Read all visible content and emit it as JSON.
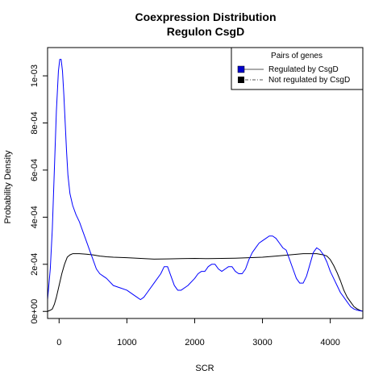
{
  "chart_data": {
    "type": "line",
    "title": "Coexpression Distribution",
    "subtitle": "Regulon CsgD",
    "xlabel": "SCR",
    "ylabel": "Probability Density",
    "xlim": [
      -170,
      4480
    ],
    "ylim": [
      -3e-05,
      0.00112
    ],
    "x_ticks": [
      0,
      1000,
      2000,
      3000,
      4000
    ],
    "x_tick_labels": [
      "0",
      "1000",
      "2000",
      "3000",
      "4000"
    ],
    "y_ticks": [
      0,
      0.0002,
      0.0004,
      0.0006,
      0.0008,
      0.001
    ],
    "y_tick_labels": [
      "0e+00",
      "2e-04",
      "4e-04",
      "6e-04",
      "8e-04",
      "1e-03"
    ],
    "grid": false,
    "legend": {
      "title": "Pairs of genes",
      "placement": "top-right",
      "entries": [
        "Regulated by  CsgD",
        "Not regulated by  CsgD"
      ]
    },
    "series": [
      {
        "name": "Regulated by  CsgD",
        "color": "#0000ff",
        "x": [
          -170,
          -130,
          -100,
          -70,
          -40,
          -10,
          10,
          30,
          50,
          70,
          90,
          110,
          130,
          160,
          200,
          250,
          300,
          350,
          400,
          450,
          500,
          550,
          600,
          650,
          700,
          800,
          900,
          1000,
          1100,
          1150,
          1200,
          1250,
          1300,
          1400,
          1500,
          1550,
          1600,
          1650,
          1700,
          1750,
          1800,
          1900,
          2000,
          2050,
          2100,
          2150,
          2200,
          2250,
          2300,
          2350,
          2400,
          2450,
          2500,
          2550,
          2600,
          2650,
          2700,
          2750,
          2800,
          2850,
          2900,
          2950,
          3000,
          3050,
          3100,
          3150,
          3200,
          3250,
          3300,
          3350,
          3400,
          3450,
          3500,
          3550,
          3600,
          3650,
          3700,
          3750,
          3800,
          3850,
          3900,
          3950,
          4000,
          4050,
          4100,
          4150,
          4200,
          4250,
          4300,
          4350,
          4400,
          4450,
          4480
        ],
        "y": [
          5e-05,
          0.00018,
          0.00035,
          0.0006,
          0.00085,
          0.00102,
          0.00107,
          0.00107,
          0.00102,
          0.00092,
          0.0008,
          0.00068,
          0.00058,
          0.0005,
          0.00045,
          0.00041,
          0.00038,
          0.00034,
          0.0003,
          0.00026,
          0.00022,
          0.00018,
          0.00016,
          0.00015,
          0.00014,
          0.00011,
          0.0001,
          9e-05,
          7e-05,
          6e-05,
          5e-05,
          6e-05,
          8e-05,
          0.00012,
          0.00016,
          0.00019,
          0.00019,
          0.00015,
          0.00011,
          9e-05,
          9e-05,
          0.00011,
          0.00014,
          0.00016,
          0.00017,
          0.00017,
          0.00019,
          0.0002,
          0.0002,
          0.00018,
          0.00017,
          0.00018,
          0.00019,
          0.00019,
          0.00017,
          0.00016,
          0.00016,
          0.00018,
          0.00022,
          0.00025,
          0.00027,
          0.00029,
          0.0003,
          0.00031,
          0.00032,
          0.00032,
          0.00031,
          0.00029,
          0.00027,
          0.00026,
          0.00022,
          0.00018,
          0.00014,
          0.00012,
          0.00012,
          0.00015,
          0.0002,
          0.00025,
          0.00027,
          0.00026,
          0.00024,
          0.00021,
          0.00017,
          0.00014,
          0.00011,
          8e-05,
          6e-05,
          4e-05,
          2e-05,
          1e-05,
          5e-06,
          2e-06,
          1e-06
        ]
      },
      {
        "name": "Not regulated by  CsgD",
        "color": "#000000",
        "x": [
          -170,
          -130,
          -100,
          -70,
          -40,
          0,
          40,
          80,
          120,
          160,
          200,
          250,
          300,
          400,
          500,
          600,
          700,
          800,
          1000,
          1200,
          1400,
          1600,
          1800,
          2000,
          2200,
          2400,
          2600,
          2800,
          3000,
          3200,
          3400,
          3600,
          3700,
          3800,
          3900,
          3950,
          4000,
          4050,
          4100,
          4150,
          4200,
          4250,
          4300,
          4350,
          4400,
          4450,
          4480
        ],
        "y": [
          0.0,
          5e-06,
          1e-05,
          3e-05,
          6e-05,
          0.00011,
          0.00016,
          0.0002,
          0.00023,
          0.00024,
          0.000245,
          0.000245,
          0.000245,
          0.000243,
          0.00024,
          0.000235,
          0.000232,
          0.00023,
          0.000228,
          0.000225,
          0.000222,
          0.000223,
          0.000224,
          0.000225,
          0.000224,
          0.000225,
          0.000226,
          0.000228,
          0.00023,
          0.000235,
          0.00024,
          0.000245,
          0.000245,
          0.000245,
          0.00024,
          0.000235,
          0.00022,
          0.000195,
          0.000165,
          0.00013,
          9e-05,
          6e-05,
          4e-05,
          2e-05,
          1e-05,
          3e-06,
          1e-06
        ]
      }
    ]
  }
}
